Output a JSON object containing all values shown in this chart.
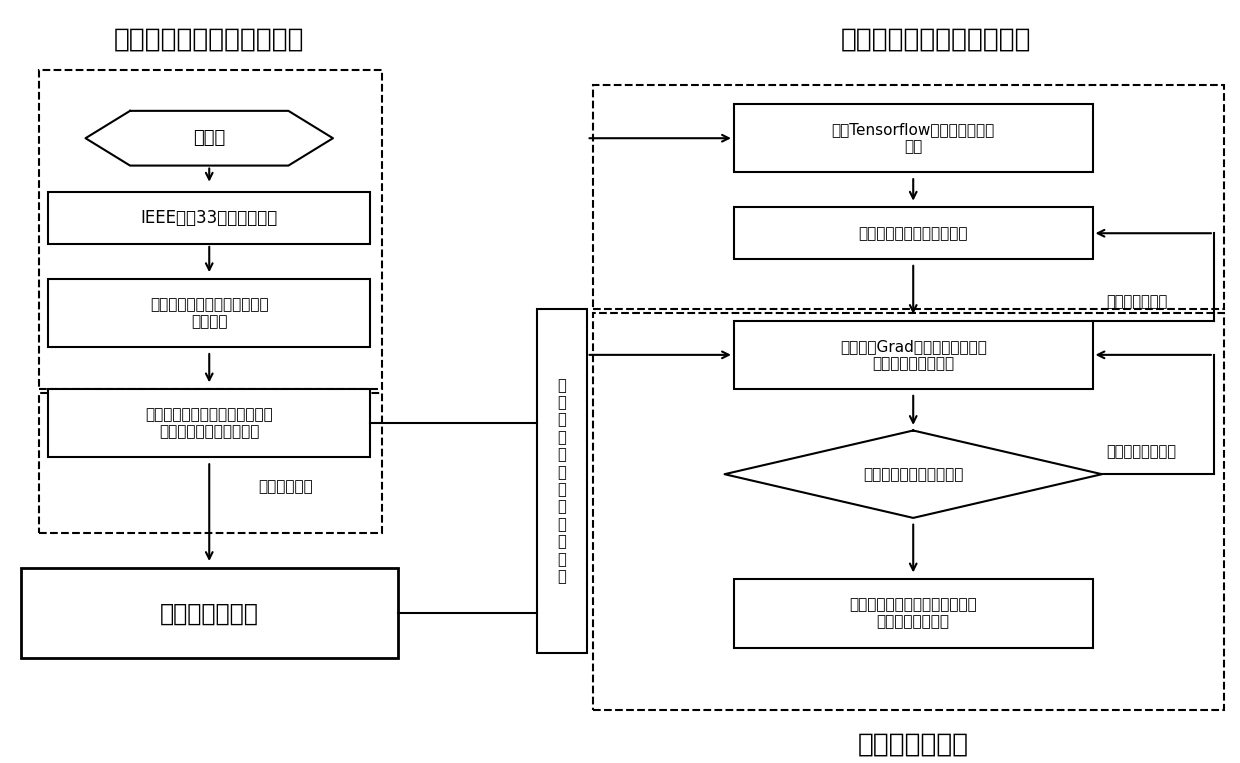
{
  "title_left": "配网故障仿真模型搭建模块",
  "title_right": "多层神经网络模型生成模块",
  "title_bottom": "准确率评估模块",
  "bg_color": "#ffffff",
  "font_size_title": 19,
  "font_size_box": 12,
  "font_size_small": 11,
  "font_size_label": 13,
  "font_size_large_box": 17
}
